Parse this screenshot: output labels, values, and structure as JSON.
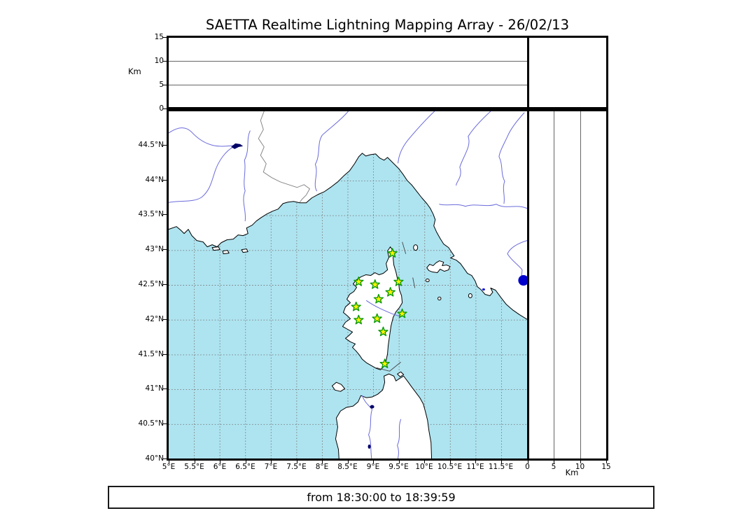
{
  "title": "SAETTA Realtime Lightning Mapping Array - 26/02/13",
  "footer": {
    "time_range": "from 18:30:00 to 18:39:59"
  },
  "axes": {
    "altitude": {
      "unit_label": "Km",
      "tick_labels": [
        "0",
        "5",
        "10",
        "15"
      ],
      "tick_values": [
        0,
        5,
        10,
        15
      ],
      "min": 0,
      "max": 15
    },
    "longitude": {
      "tick_labels": [
        "5°E",
        "5.5°E",
        "6°E",
        "6.5°E",
        "7°E",
        "7.5°E",
        "8°E",
        "8.5°E",
        "9°E",
        "9.5°E",
        "10°E",
        "10.5°E",
        "11°E",
        "11.5°E"
      ],
      "tick_values": [
        5,
        5.5,
        6,
        6.5,
        7,
        7.5,
        8,
        8.5,
        9,
        9.5,
        10,
        10.5,
        11,
        11.5
      ]
    },
    "latitude": {
      "tick_labels": [
        "44.5°N",
        "44°N",
        "43.5°N",
        "43°N",
        "42.5°N",
        "42°N",
        "41.5°N",
        "41°N",
        "40.5°N",
        "40°N"
      ],
      "tick_values": [
        44.5,
        44,
        43.5,
        43,
        42.5,
        42,
        41.5,
        41,
        40.5,
        40
      ]
    }
  },
  "map_data": {
    "extent": {
      "lon_min": 5,
      "lon_max": 12,
      "lat_min": 40,
      "lat_max": 45
    },
    "grid_step_deg": 0.5,
    "stations": [
      {
        "lon": 9.37,
        "lat": 42.96
      },
      {
        "lon": 8.71,
        "lat": 42.55
      },
      {
        "lon": 9.03,
        "lat": 42.51
      },
      {
        "lon": 9.49,
        "lat": 42.55
      },
      {
        "lon": 9.33,
        "lat": 42.4
      },
      {
        "lon": 9.1,
        "lat": 42.3
      },
      {
        "lon": 8.66,
        "lat": 42.19
      },
      {
        "lon": 9.56,
        "lat": 42.09
      },
      {
        "lon": 8.71,
        "lat": 42.0
      },
      {
        "lon": 9.07,
        "lat": 42.02
      },
      {
        "lon": 9.19,
        "lat": 41.83
      },
      {
        "lon": 9.22,
        "lat": 41.37
      }
    ],
    "event_marker": {
      "lon": 11.93,
      "lat": 42.57
    }
  },
  "colors": {
    "sea": "#aee4f0",
    "land": "#ffffff",
    "coastline": "#000000",
    "river": "#6b6bdb",
    "country_border": "#888888",
    "grid": "#777777",
    "station_fill": "#fff200",
    "station_stroke": "#0a9a0a",
    "event_marker": "#0000cc",
    "lake": "#000066"
  }
}
